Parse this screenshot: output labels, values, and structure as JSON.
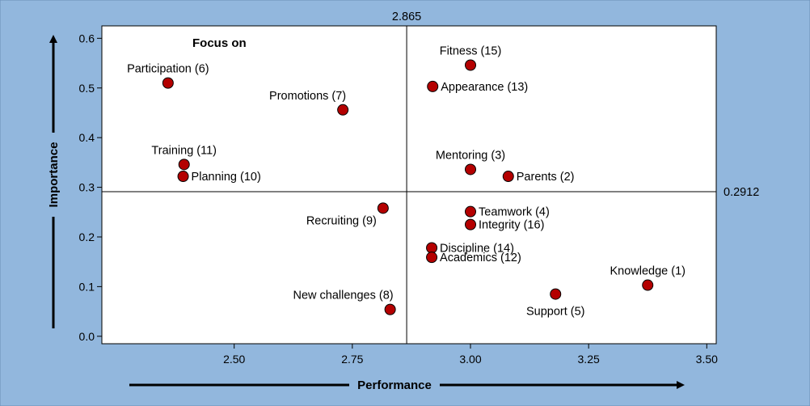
{
  "chart_data": {
    "type": "scatter",
    "title": "",
    "xlabel": "Performance",
    "ylabel": "Importance",
    "xlim": [
      2.22,
      3.52
    ],
    "ylim": [
      -0.015,
      0.625
    ],
    "xticks": [
      2.5,
      2.75,
      3.0,
      3.25,
      3.5
    ],
    "xtick_labels": [
      "2.50",
      "2.75",
      "3.00",
      "3.25",
      "3.50"
    ],
    "yticks": [
      0.0,
      0.1,
      0.2,
      0.3,
      0.4,
      0.5,
      0.6
    ],
    "ytick_labels": [
      "0.0",
      "0.1",
      "0.2",
      "0.3",
      "0.4",
      "0.5",
      "0.6"
    ],
    "grid": false,
    "vline": {
      "value": 2.865,
      "label": "2.865"
    },
    "hline": {
      "value": 0.2912,
      "label": "0.2912"
    },
    "quadrant_annotation": "Focus on",
    "marker_color": "#b40000",
    "background_color": "#92b7dd",
    "points": [
      {
        "label": "Participation (6)",
        "x": 2.36,
        "y": 0.51,
        "label_pos": "above"
      },
      {
        "label": "Promotions (7)",
        "x": 2.73,
        "y": 0.456,
        "label_pos": "above-left"
      },
      {
        "label": "Training (11)",
        "x": 2.394,
        "y": 0.346,
        "label_pos": "above"
      },
      {
        "label": "Planning (10)",
        "x": 2.392,
        "y": 0.322,
        "label_pos": "right"
      },
      {
        "label": "Recruiting (9)",
        "x": 2.815,
        "y": 0.258,
        "label_pos": "below-left"
      },
      {
        "label": "New challenges (8)",
        "x": 2.83,
        "y": 0.054,
        "label_pos": "above-left"
      },
      {
        "label": "Fitness (15)",
        "x": 3.0,
        "y": 0.546,
        "label_pos": "above"
      },
      {
        "label": "Appearance (13)",
        "x": 2.92,
        "y": 0.503,
        "label_pos": "right"
      },
      {
        "label": "Mentoring (3)",
        "x": 3.0,
        "y": 0.336,
        "label_pos": "above"
      },
      {
        "label": "Parents (2)",
        "x": 3.08,
        "y": 0.322,
        "label_pos": "right"
      },
      {
        "label": "Teamwork (4)",
        "x": 3.0,
        "y": 0.251,
        "label_pos": "right"
      },
      {
        "label": "Integrity (16)",
        "x": 3.0,
        "y": 0.225,
        "label_pos": "right"
      },
      {
        "label": "Discipline (14)",
        "x": 2.918,
        "y": 0.178,
        "label_pos": "right"
      },
      {
        "label": "Academics (12)",
        "x": 2.918,
        "y": 0.159,
        "label_pos": "right"
      },
      {
        "label": "Knowledge (1)",
        "x": 3.375,
        "y": 0.103,
        "label_pos": "above"
      },
      {
        "label": "Support (5)",
        "x": 3.18,
        "y": 0.085,
        "label_pos": "below"
      }
    ]
  }
}
